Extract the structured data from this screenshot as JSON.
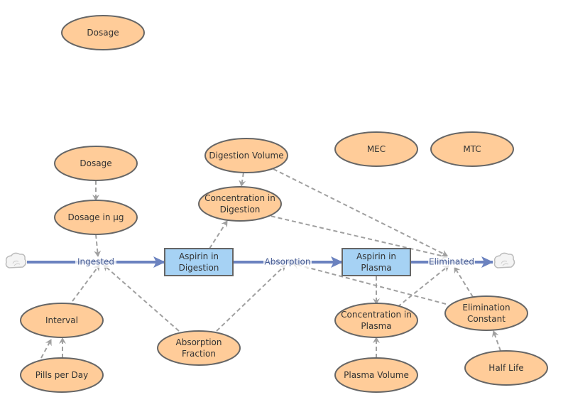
{
  "colors": {
    "variable_fill": "#ffcc99",
    "variable_stroke": "#666666",
    "stock_fill": "#a6d2f4",
    "stock_stroke": "#666666",
    "flow": "#6b82bf",
    "link": "#a0a0a0"
  },
  "variables": {
    "dosage_top": [
      "Dosage"
    ],
    "dosage": [
      "Dosage"
    ],
    "dosage_ug": [
      "Dosage in µg"
    ],
    "interval": [
      "Interval"
    ],
    "pills": [
      "Pills per Day"
    ],
    "abs_frac": [
      "Absorption",
      "Fraction"
    ],
    "dig_vol": [
      "Digestion Volume"
    ],
    "conc_dig": [
      "Concentration in",
      "Digestion"
    ],
    "mec": [
      "MEC"
    ],
    "mtc": [
      "MTC"
    ],
    "conc_pl": [
      "Concentration in",
      "Plasma"
    ],
    "pl_vol": [
      "Plasma Volume"
    ],
    "elim_const": [
      "Elimination",
      "Constant"
    ],
    "half_life": [
      "Half Life"
    ]
  },
  "stocks": {
    "digestion": [
      "Aspirin in",
      "Digestion"
    ],
    "plasma": [
      "Aspirin in",
      "Plasma"
    ]
  },
  "flows": {
    "ingested": "Ingested",
    "absorption": "Absorption",
    "eliminated": "Eliminated"
  },
  "icons": {
    "source": "cloud-icon",
    "sink": "cloud-icon"
  }
}
